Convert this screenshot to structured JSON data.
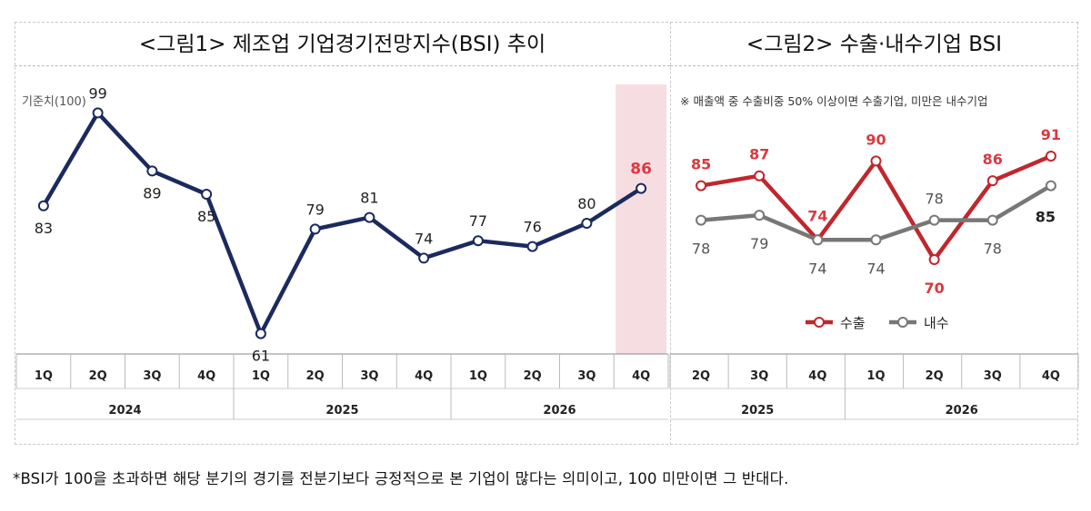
{
  "colors": {
    "navy": "#1b2a5e",
    "red": "#c0272d",
    "gray": "#777777",
    "highlight": "#f6dde2",
    "red_label": "#d83a3f"
  },
  "chart1": {
    "title": "<그림1> 제조업 기업경기전망지수(BSI) 추이",
    "baseline_label": "기준치(100)"
  },
  "chart2": {
    "title": "<그림2> 수출·내수기업 BSI",
    "note": "※ 매출액 중 수출비중 50% 이상이면 수출기업, 미만은 내수기업"
  },
  "footnote": "*BSI가 100을 초과하면 해당 분기의 경기를 전분기보다 긍정적으로 본 기업이 많다는 의미이고, 100 미만이면 그 반대다.",
  "chart_data": [
    {
      "type": "line",
      "categories": [
        "1Q",
        "2Q",
        "3Q",
        "4Q",
        "1Q",
        "2Q",
        "3Q",
        "4Q",
        "1Q",
        "2Q",
        "3Q",
        "4Q"
      ],
      "years": [
        {
          "label": "2024",
          "span": 4
        },
        {
          "label": "2025",
          "span": 4
        },
        {
          "label": "2026",
          "span": 4
        }
      ],
      "series": [
        {
          "values": [
            83,
            99,
            89,
            85,
            61,
            79,
            81,
            74,
            77,
            76,
            80,
            86
          ]
        }
      ],
      "highlight_index": 11,
      "ylim": [
        55,
        105
      ],
      "grid": false
    },
    {
      "type": "line",
      "categories": [
        "2Q",
        "3Q",
        "4Q",
        "1Q",
        "2Q",
        "3Q",
        "4Q"
      ],
      "years": [
        {
          "label": "2025",
          "span": 3
        },
        {
          "label": "2026",
          "span": 4
        }
      ],
      "series": [
        {
          "name": "수출",
          "values": [
            85,
            87,
            74,
            90,
            70,
            86,
            91
          ]
        },
        {
          "name": "내수",
          "values": [
            78,
            79,
            74,
            74,
            78,
            78,
            85
          ]
        }
      ],
      "legend": "bottom-center",
      "ylim": [
        60,
        100
      ],
      "grid": false
    }
  ]
}
